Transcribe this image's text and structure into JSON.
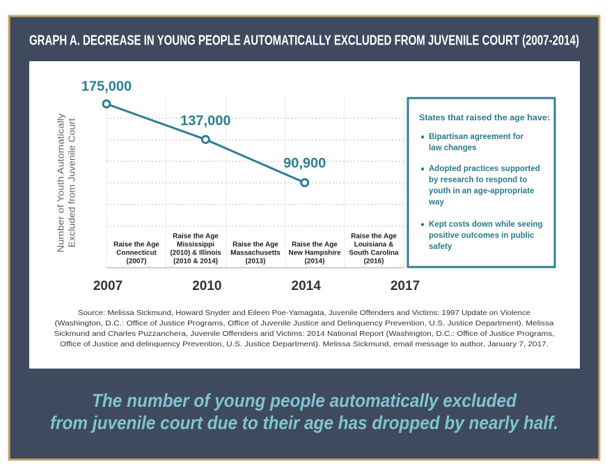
{
  "title": "GRAPH A. DECREASE IN YOUNG PEOPLE AUTOMATICALLY EXCLUDED FROM JUVENILE COURT (2007-2014)",
  "chart_data": {
    "type": "line",
    "y_label": [
      "Number of Youth Automatically",
      "Excluded from Juvenile Court"
    ],
    "categories": [
      "2007",
      "2010",
      "2014",
      "2017"
    ],
    "values": [
      175000,
      137000,
      90900,
      null
    ],
    "value_labels": [
      "175,000",
      "137,000",
      "90,900",
      null
    ],
    "color": "#2e7f93",
    "ylim": [
      0,
      182000
    ],
    "milestones": [
      [
        "Raise the Age",
        "Connecticut",
        "(2007)"
      ],
      [
        "Raise the Age",
        "Mississippi",
        "(2010) & Illinois",
        "(2010 & 2014)"
      ],
      [
        "Raise the Age",
        "Massachusetts",
        "(2013)"
      ],
      [
        "Raise the Age",
        "New Hampshire",
        "(2014)"
      ],
      [
        "Raise the Age",
        "Louisiana &",
        "South Carolina",
        "(2016)"
      ]
    ]
  },
  "sidebar": {
    "title": "States that raised the age have:",
    "bullets": [
      [
        "Bipartisan agreement for",
        "law changes"
      ],
      [
        "Adopted practices supported",
        "by research to respond to",
        "youth in an age-appropriate",
        "way"
      ],
      [
        "Kept costs down while seeing",
        "positive outcomes in public",
        "safety"
      ]
    ]
  },
  "source": [
    "Source: Melissa Sickmund, Howard Snyder and Eileen Poe-Yamagata, Juvenile Offenders and Victims: 1997 Update on Violence",
    "(Washington, D.C.: Office of Justice Programs, Office of Juvenile Justice and Delinquency Prevention, U.S. Justice Department). Melissa",
    "Sickmund and Charles Puzzanchera, Juvenile Offenders and Victims: 2014 National Report (Washington, D.C.: Office of Justice Programs,",
    "Office of Justice and delinquency Prevention, U.S. Justice Department). Melissa Sickmund, email message to author, January 7, 2017."
  ],
  "caption": [
    "The number of young people automatically excluded",
    "from juvenile court due to their age has dropped by nearly half."
  ]
}
